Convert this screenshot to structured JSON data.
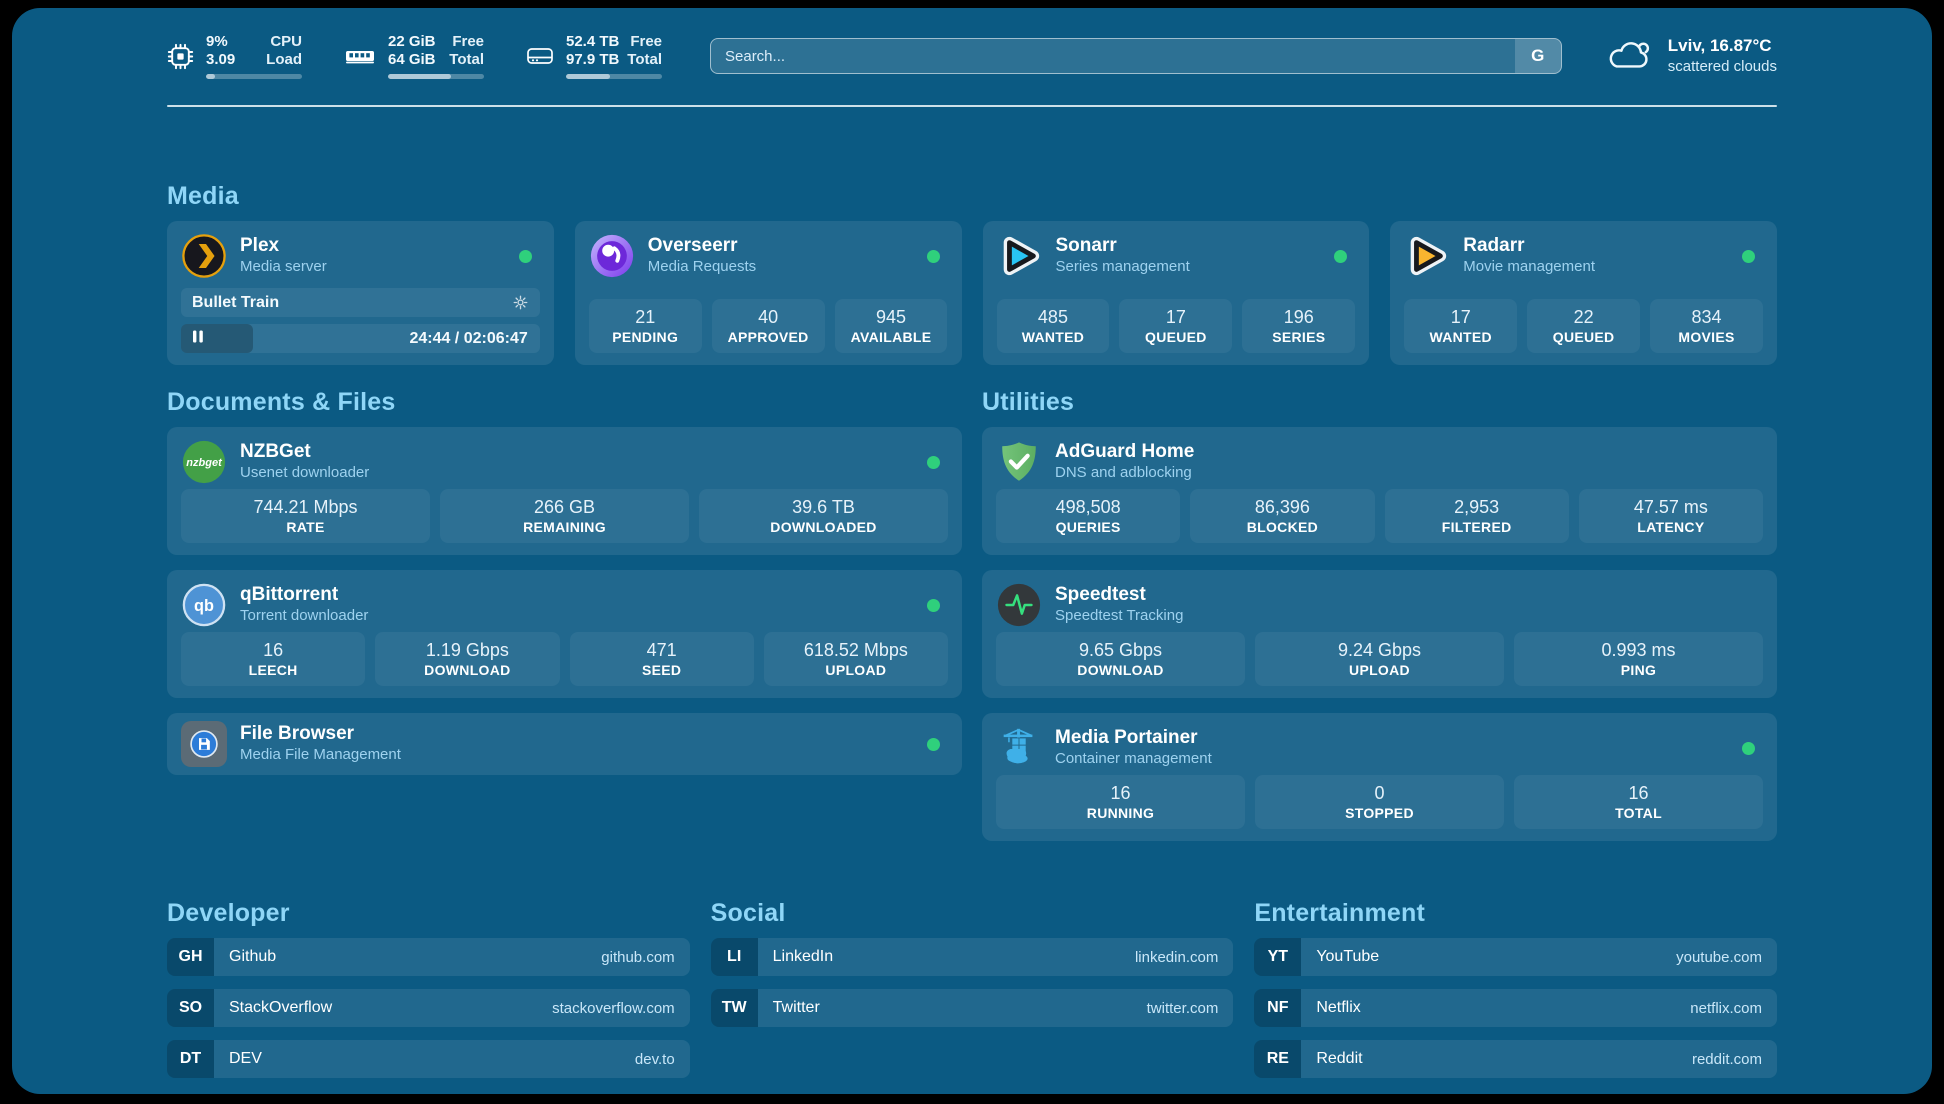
{
  "header": {
    "system_stats": [
      {
        "icon": "cpu-icon",
        "value_top": "9%",
        "value_bottom": "3.09",
        "label_top": "CPU",
        "label_bottom": "Load",
        "progress": 9
      },
      {
        "icon": "ram-icon",
        "value_top": "22 GiB",
        "value_bottom": "64 GiB",
        "label_top": "Free",
        "label_bottom": "Total",
        "progress": 66
      },
      {
        "icon": "disk-icon",
        "value_top": "52.4 TB",
        "value_bottom": "97.9 TB",
        "label_top": "Free",
        "label_bottom": "Total",
        "progress": 46
      }
    ],
    "search": {
      "placeholder": "Search...",
      "button_label": "G"
    },
    "weather": {
      "icon": "cloud-icon",
      "location_temp": "Lviv, 16.87°C",
      "condition": "scattered clouds"
    }
  },
  "sections": {
    "media": {
      "title": "Media",
      "cards": [
        {
          "name": "Plex",
          "subtitle": "Media server",
          "icon": "plex-icon",
          "online": true,
          "now_playing": {
            "title": "Bullet Train",
            "time": "24:44 / 02:06:47",
            "progress": 20
          }
        },
        {
          "name": "Overseerr",
          "subtitle": "Media Requests",
          "icon": "overseerr-icon",
          "online": true,
          "stats": [
            {
              "value": "21",
              "label": "PENDING"
            },
            {
              "value": "40",
              "label": "APPROVED"
            },
            {
              "value": "945",
              "label": "AVAILABLE"
            }
          ]
        },
        {
          "name": "Sonarr",
          "subtitle": "Series management",
          "icon": "sonarr-icon",
          "online": true,
          "stats": [
            {
              "value": "485",
              "label": "WANTED"
            },
            {
              "value": "17",
              "label": "QUEUED"
            },
            {
              "value": "196",
              "label": "SERIES"
            }
          ]
        },
        {
          "name": "Radarr",
          "subtitle": "Movie management",
          "icon": "radarr-icon",
          "online": true,
          "stats": [
            {
              "value": "17",
              "label": "WANTED"
            },
            {
              "value": "22",
              "label": "QUEUED"
            },
            {
              "value": "834",
              "label": "MOVIES"
            }
          ]
        }
      ]
    },
    "documents": {
      "title": "Documents & Files",
      "cards": [
        {
          "name": "NZBGet",
          "subtitle": "Usenet downloader",
          "icon": "nzbget-icon",
          "online": true,
          "stats": [
            {
              "value": "744.21 Mbps",
              "label": "RATE"
            },
            {
              "value": "266 GB",
              "label": "REMAINING"
            },
            {
              "value": "39.6 TB",
              "label": "DOWNLOADED"
            }
          ]
        },
        {
          "name": "qBittorrent",
          "subtitle": "Torrent downloader",
          "icon": "qbittorrent-icon",
          "online": true,
          "stats": [
            {
              "value": "16",
              "label": "LEECH"
            },
            {
              "value": "1.19 Gbps",
              "label": "DOWNLOAD"
            },
            {
              "value": "471",
              "label": "SEED"
            },
            {
              "value": "618.52 Mbps",
              "label": "UPLOAD"
            }
          ]
        },
        {
          "name": "File Browser",
          "subtitle": "Media File Management",
          "icon": "filebrowser-icon",
          "online": true,
          "stats": []
        }
      ]
    },
    "utilities": {
      "title": "Utilities",
      "cards": [
        {
          "name": "AdGuard Home",
          "subtitle": "DNS and adblocking",
          "icon": "adguard-icon",
          "online": false,
          "stats": [
            {
              "value": "498,508",
              "label": "QUERIES"
            },
            {
              "value": "86,396",
              "label": "BLOCKED"
            },
            {
              "value": "2,953",
              "label": "FILTERED"
            },
            {
              "value": "47.57 ms",
              "label": "LATENCY"
            }
          ]
        },
        {
          "name": "Speedtest",
          "subtitle": "Speedtest Tracking",
          "icon": "speedtest-icon",
          "online": false,
          "stats": [
            {
              "value": "9.65 Gbps",
              "label": "DOWNLOAD"
            },
            {
              "value": "9.24 Gbps",
              "label": "UPLOAD"
            },
            {
              "value": "0.993 ms",
              "label": "PING"
            }
          ]
        },
        {
          "name": "Media Portainer",
          "subtitle": "Container management",
          "icon": "portainer-icon",
          "online": true,
          "stats": [
            {
              "value": "16",
              "label": "RUNNING"
            },
            {
              "value": "0",
              "label": "STOPPED"
            },
            {
              "value": "16",
              "label": "TOTAL"
            }
          ]
        }
      ]
    }
  },
  "bookmarks": {
    "developer": {
      "title": "Developer",
      "items": [
        {
          "abbr": "GH",
          "name": "Github",
          "url": "github.com"
        },
        {
          "abbr": "SO",
          "name": "StackOverflow",
          "url": "stackoverflow.com"
        },
        {
          "abbr": "DT",
          "name": "DEV",
          "url": "dev.to"
        }
      ]
    },
    "social": {
      "title": "Social",
      "items": [
        {
          "abbr": "LI",
          "name": "LinkedIn",
          "url": "linkedin.com"
        },
        {
          "abbr": "TW",
          "name": "Twitter",
          "url": "twitter.com"
        }
      ]
    },
    "entertainment": {
      "title": "Entertainment",
      "items": [
        {
          "abbr": "YT",
          "name": "YouTube",
          "url": "youtube.com"
        },
        {
          "abbr": "NF",
          "name": "Netflix",
          "url": "netflix.com"
        },
        {
          "abbr": "RE",
          "name": "Reddit",
          "url": "reddit.com"
        }
      ]
    }
  },
  "colors": {
    "background": "#0b5a83",
    "status_online": "#2fd07c",
    "section_heading": "#8fd6f7",
    "plex_amber": "#e5a00d",
    "sonarr_cyan": "#29c4f3",
    "radarr_amber": "#f9b52f",
    "nzbget_green": "#43a047",
    "adguard_green": "#67b96b",
    "portainer_blue": "#3fb0e8"
  }
}
